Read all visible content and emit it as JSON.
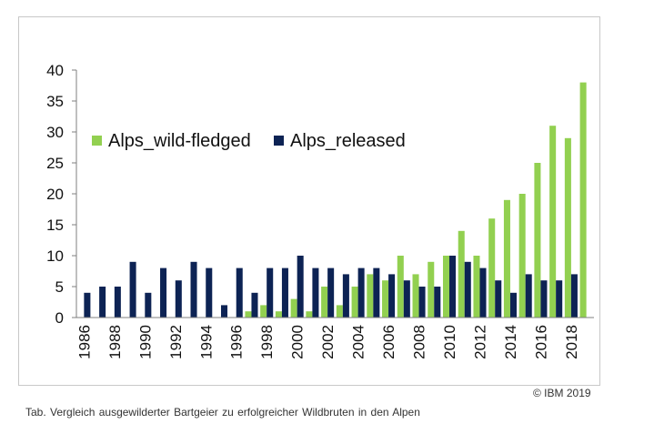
{
  "chart_data": {
    "type": "bar",
    "title": "",
    "xlabel": "",
    "ylabel": "",
    "ylim": [
      0,
      40
    ],
    "yticks": [
      0,
      5,
      10,
      15,
      20,
      25,
      30,
      35,
      40
    ],
    "categories": [
      "1986",
      "1987",
      "1988",
      "1989",
      "1990",
      "1991",
      "1992",
      "1993",
      "1994",
      "1995",
      "1996",
      "1997",
      "1998",
      "1999",
      "2000",
      "2001",
      "2002",
      "2003",
      "2004",
      "2005",
      "2006",
      "2007",
      "2008",
      "2009",
      "2010",
      "2011",
      "2012",
      "2013",
      "2014",
      "2015",
      "2016",
      "2017",
      "2018",
      "2019"
    ],
    "xtick_labels": [
      "1986",
      "1988",
      "1990",
      "1992",
      "1994",
      "1996",
      "1998",
      "2000",
      "2002",
      "2004",
      "2006",
      "2008",
      "2010",
      "2012",
      "2014",
      "2016",
      "2018"
    ],
    "series": [
      {
        "name": "Alps_wild-fledged",
        "color": "#92d050",
        "values": [
          0,
          0,
          0,
          0,
          0,
          0,
          0,
          0,
          0,
          0,
          0,
          1,
          2,
          1,
          3,
          1,
          5,
          2,
          5,
          7,
          6,
          10,
          7,
          9,
          10,
          14,
          10,
          16,
          19,
          20,
          25,
          31,
          29,
          38
        ]
      },
      {
        "name": "Alps_released",
        "color": "#0d2354",
        "values": [
          4,
          5,
          5,
          9,
          4,
          8,
          6,
          9,
          8,
          2,
          8,
          4,
          8,
          8,
          10,
          8,
          8,
          7,
          8,
          8,
          7,
          6,
          5,
          5,
          10,
          9,
          8,
          6,
          4,
          7,
          6,
          6,
          7,
          0
        ]
      }
    ],
    "legend_position": "upper-left"
  },
  "copyright": "© IBM 2019",
  "caption": "Tab. Vergleich ausgewilderter Bartgeier zu erfolgreicher Wildbruten in den Alpen"
}
